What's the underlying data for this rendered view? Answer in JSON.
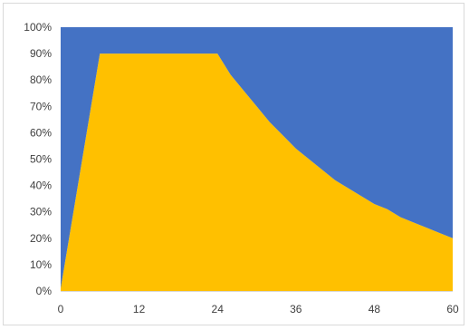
{
  "chart_data": {
    "type": "area",
    "stacked": true,
    "normalized": true,
    "x": [
      0,
      6,
      24,
      26,
      28,
      30,
      32,
      34,
      36,
      38,
      40,
      42,
      44,
      46,
      48,
      50,
      52,
      54,
      56,
      58,
      60
    ],
    "series": [
      {
        "color": "#FFC000",
        "values": [
          0.01,
          0.9,
          0.9,
          0.82,
          0.76,
          0.7,
          0.64,
          0.59,
          0.54,
          0.5,
          0.46,
          0.42,
          0.39,
          0.36,
          0.33,
          0.31,
          0.28,
          0.26,
          0.24,
          0.22,
          0.2
        ]
      },
      {
        "color": "#4472C4",
        "values": [
          0.99,
          0.1,
          0.1,
          0.18,
          0.24,
          0.3,
          0.36,
          0.41,
          0.46,
          0.5,
          0.54,
          0.58,
          0.61,
          0.64,
          0.67,
          0.69,
          0.72,
          0.74,
          0.76,
          0.78,
          0.8
        ]
      }
    ],
    "xlim": [
      0,
      60
    ],
    "ylim": [
      0,
      1
    ],
    "x_ticks": [
      0,
      12,
      24,
      36,
      48,
      60
    ],
    "x_tick_labels": [
      "0",
      "12",
      "24",
      "36",
      "48",
      "60"
    ],
    "y_ticks": [
      0,
      0.1,
      0.2,
      0.3,
      0.4,
      0.5,
      0.6,
      0.7,
      0.8,
      0.9,
      1.0
    ],
    "y_tick_labels": [
      "0%",
      "10%",
      "20%",
      "30%",
      "40%",
      "50%",
      "60%",
      "70%",
      "80%",
      "90%",
      "100%"
    ],
    "grid": false,
    "legend": "none",
    "title": "",
    "xlabel": "",
    "ylabel": ""
  }
}
